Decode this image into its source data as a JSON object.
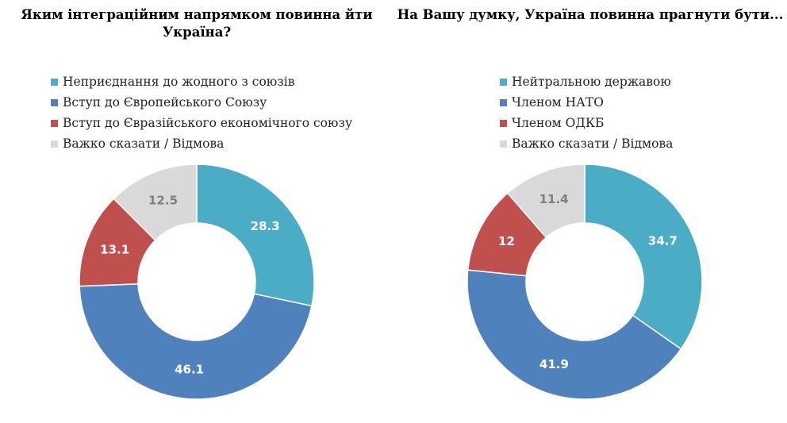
{
  "chart_data": [
    {
      "type": "pie",
      "title": "Яким інтеграційним напрямком повинна йти Україна?",
      "legend_position": "top",
      "categories": [
        "Неприєднання до жодного з союзів",
        "Вступ до Європейського Союзу",
        "Вступ до Євразійського економічного союзу",
        "Важко сказати / Відмова"
      ],
      "values": [
        28.3,
        46.1,
        13.1,
        12.5
      ],
      "value_labels": [
        "28.3",
        "46.1",
        "13.1",
        "12.5"
      ],
      "colors": [
        "#4bacc6",
        "#4f81bd",
        "#c0504d",
        "#d9d9d9"
      ],
      "label_colors": [
        "#ffffff",
        "#ffffff",
        "#ffffff",
        "#7f7f7f"
      ]
    },
    {
      "type": "pie",
      "title": "На Вашу думку, Україна повинна прагнути бути...",
      "legend_position": "top",
      "categories": [
        "Нейтральною державою",
        "Членом НАТО",
        "Членом ОДКБ",
        "Важко сказати / Відмова"
      ],
      "values": [
        34.7,
        41.9,
        12,
        11.4
      ],
      "value_labels": [
        "34.7",
        "41.9",
        "12",
        "11.4"
      ],
      "colors": [
        "#4bacc6",
        "#4f81bd",
        "#c0504d",
        "#d9d9d9"
      ],
      "label_colors": [
        "#ffffff",
        "#ffffff",
        "#ffffff",
        "#7f7f7f"
      ]
    }
  ]
}
